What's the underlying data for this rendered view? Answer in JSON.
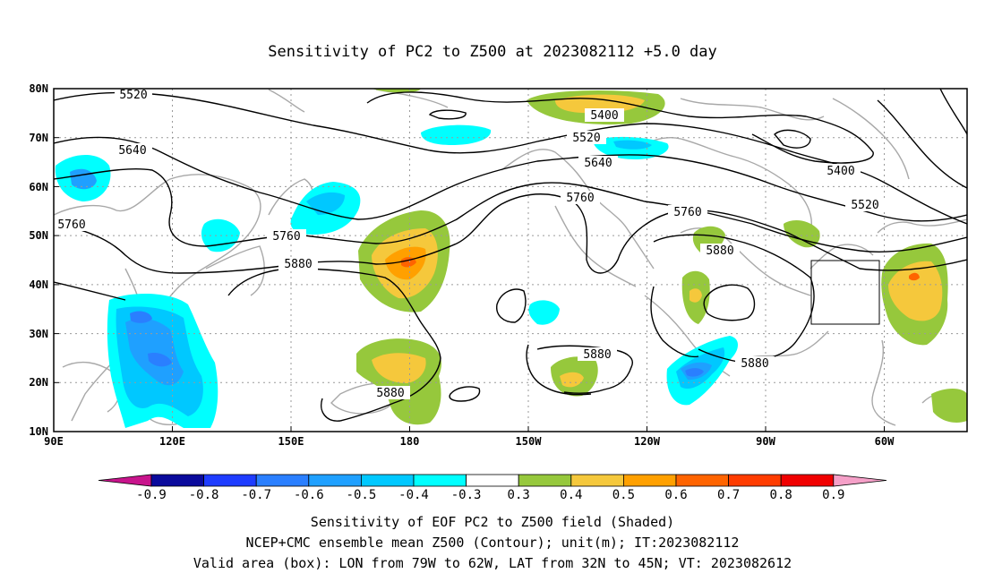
{
  "title": "Sensitivity of PC2 to Z500 at 2023082112 +5.0 day",
  "map": {
    "lon_labels": [
      "90E",
      "120E",
      "150E",
      "180",
      "150W",
      "120W",
      "90W",
      "60W"
    ],
    "lat_labels": [
      "80N",
      "70N",
      "60N",
      "50N",
      "40N",
      "30N",
      "20N",
      "10N"
    ],
    "contour_labels": [
      "5520",
      "5640",
      "5760",
      "5760",
      "5880",
      "5400",
      "5520",
      "5640",
      "5760",
      "5760",
      "5880",
      "5880",
      "5880",
      "5880",
      "5400",
      "5520"
    ],
    "valid_box": {
      "lon_west": -79,
      "lon_east": -62,
      "lat_south": 32,
      "lat_north": 45
    }
  },
  "colorbar": {
    "labels": [
      "-0.9",
      "-0.8",
      "-0.7",
      "-0.6",
      "-0.5",
      "-0.4",
      "-0.3",
      "0.3",
      "0.4",
      "0.5",
      "0.6",
      "0.7",
      "0.8",
      "0.9"
    ],
    "colors": [
      "#0a0a9c",
      "#1e3cff",
      "#2a7fff",
      "#1fa0ff",
      "#00c8ff",
      "#00ffff",
      "#ffffff",
      "#96c83c",
      "#f5c83c",
      "#ffa000",
      "#ff6400",
      "#ff3c00",
      "#f00000"
    ],
    "end_left_color": "#c8148c",
    "end_right_color": "#f5a0c8"
  },
  "footer": {
    "line1": "Sensitivity of EOF PC2 to Z500 field (Shaded)",
    "line2": "NCEP+CMC ensemble mean Z500 (Contour); unit(m); IT:2023082112",
    "line3": "Valid area (box): LON from 79W to 62W, LAT from 32N to 45N; VT: 2023082612"
  }
}
